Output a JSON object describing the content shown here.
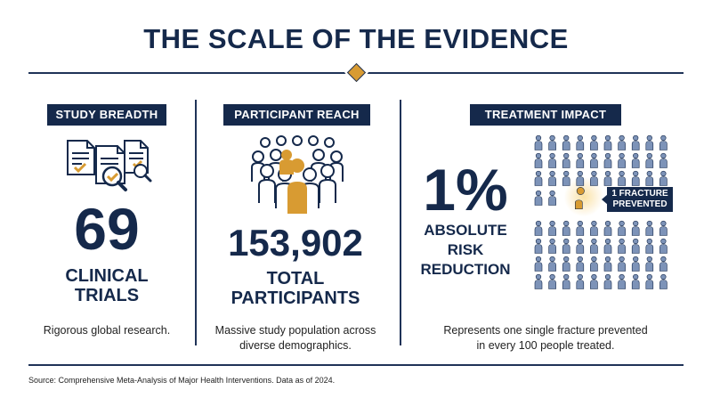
{
  "title": "THE SCALE OF THE EVIDENCE",
  "colors": {
    "navy": "#15294b",
    "gold": "#d89b32",
    "person_blue": "#7d93b8"
  },
  "columns": [
    {
      "header": "STUDY BREADTH",
      "icon": "documents-magnifier-icon",
      "number": "69",
      "label_line1": "CLINICAL",
      "label_line2": "TRIALS",
      "description": "Rigorous global research."
    },
    {
      "header": "PARTICIPANT REACH",
      "icon": "crowd-icon",
      "number": "153,902",
      "label_line1": "TOTAL",
      "label_line2": "PARTICIPANTS",
      "description_line1": "Massive study population across",
      "description_line2": "diverse demographics."
    },
    {
      "header": "TREATMENT IMPACT",
      "icon": "person-grid-icon",
      "number": "1%",
      "label_line1": "ABSOLUTE",
      "label_line2": "RISK",
      "label_line3": "REDUCTION",
      "callout_line1": "1 FRACTURE",
      "callout_line2": "PREVENTED",
      "description_line1": "Represents one single fracture prevented",
      "description_line2": "in every 100 people treated.",
      "grid_total": 100,
      "grid_highlighted": 1
    }
  ],
  "source": "Source: Comprehensive Meta-Analysis of Major Health Interventions. Data as of 2024."
}
